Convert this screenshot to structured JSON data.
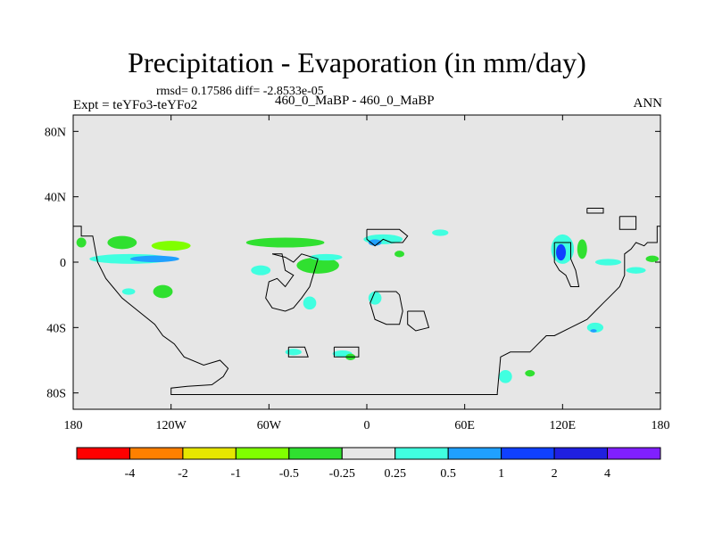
{
  "chart_data": {
    "type": "contour-map",
    "title": "Precipitation - Evaporation (in mm/day)",
    "stats_text": "rmsd= 0.17586 diff= -2.8533e-05",
    "left_label": "Expt = teYFo3-teYFo2",
    "center_label": "460_0_MaBP - 460_0_MaBP",
    "right_label": "ANN",
    "x_range": [
      -180,
      180
    ],
    "y_range": [
      -90,
      90
    ],
    "x_ticks": [
      {
        "value": -180,
        "label": "180"
      },
      {
        "value": -120,
        "label": "120W"
      },
      {
        "value": -60,
        "label": "60W"
      },
      {
        "value": 0,
        "label": "0"
      },
      {
        "value": 60,
        "label": "60E"
      },
      {
        "value": 120,
        "label": "120E"
      },
      {
        "value": 180,
        "label": "180"
      }
    ],
    "y_ticks": [
      {
        "value": 80,
        "label": "80N"
      },
      {
        "value": 40,
        "label": "40N"
      },
      {
        "value": 0,
        "label": "0"
      },
      {
        "value": -40,
        "label": "40S"
      },
      {
        "value": -80,
        "label": "80S"
      }
    ],
    "background_color": "#e6e6e6",
    "colorbar": {
      "colors": [
        "#ff0000",
        "#ff8000",
        "#e6e600",
        "#80ff00",
        "#30e030",
        "#e6e6e6",
        "#40ffe0",
        "#20a0ff",
        "#1040ff",
        "#2020e0",
        "#8020ff"
      ],
      "labels": [
        "-4",
        "-2",
        "-1",
        "-0.5",
        "-0.25",
        "0.25",
        "0.5",
        "1",
        "2",
        "4"
      ]
    },
    "regions": [
      {
        "name": "tropical-pacific-north-band",
        "lon": -150,
        "lat": 12,
        "rlon": 9,
        "rlat": 4,
        "color": "#30e030"
      },
      {
        "name": "tropical-pacific-band",
        "lon": -145,
        "lat": 2,
        "rlon": 25,
        "rlat": 3,
        "color": "#40ffe0"
      },
      {
        "name": "tropical-pacific-core",
        "lon": -130,
        "lat": 2,
        "rlon": 15,
        "rlat": 2,
        "color": "#20a0ff"
      },
      {
        "name": "west-pacific-green",
        "lon": -175,
        "lat": 12,
        "rlon": 3,
        "rlat": 3,
        "color": "#30e030"
      },
      {
        "name": "east-pacific-green",
        "lon": -120,
        "lat": 10,
        "rlon": 12,
        "rlat": 3,
        "color": "#80ff00"
      },
      {
        "name": "south-pacific-green",
        "lon": -125,
        "lat": -18,
        "rlon": 6,
        "rlat": 4,
        "color": "#30e030"
      },
      {
        "name": "south-pacific-cyan",
        "lon": -146,
        "lat": -18,
        "rlon": 4,
        "rlat": 2,
        "color": "#40ffe0"
      },
      {
        "name": "atlantic-north-band",
        "lon": -50,
        "lat": 12,
        "rlon": 24,
        "rlat": 3,
        "color": "#30e030"
      },
      {
        "name": "atlantic-south-band",
        "lon": -30,
        "lat": -2,
        "rlon": 13,
        "rlat": 5,
        "color": "#30e030"
      },
      {
        "name": "atlantic-cyan",
        "lon": -25,
        "lat": 3,
        "rlon": 10,
        "rlat": 2,
        "color": "#40ffe0"
      },
      {
        "name": "atlantic-west-cyan",
        "lon": -65,
        "lat": -5,
        "rlon": 6,
        "rlat": 3,
        "color": "#40ffe0"
      },
      {
        "name": "africa-north-cyan",
        "lon": 10,
        "lat": 14,
        "rlon": 12,
        "rlat": 3,
        "color": "#40ffe0"
      },
      {
        "name": "africa-north-blue",
        "lon": 5,
        "lat": 12,
        "rlon": 4,
        "rlat": 2,
        "color": "#20a0ff"
      },
      {
        "name": "east-africa-cyan",
        "lon": 45,
        "lat": 18,
        "rlon": 5,
        "rlat": 2,
        "color": "#40ffe0"
      },
      {
        "name": "indian-ocean-green",
        "lon": 20,
        "lat": 5,
        "rlon": 3,
        "rlat": 2,
        "color": "#30e030"
      },
      {
        "name": "south-america-cyan",
        "lon": -35,
        "lat": -25,
        "rlon": 4,
        "rlat": 4,
        "color": "#40ffe0"
      },
      {
        "name": "southern-africa-cyan",
        "lon": 5,
        "lat": -22,
        "rlon": 4,
        "rlat": 4,
        "color": "#40ffe0"
      },
      {
        "name": "south-ocean-cyan-west",
        "lon": -45,
        "lat": -55,
        "rlon": 5,
        "rlat": 2,
        "color": "#40ffe0"
      },
      {
        "name": "south-ocean-cyan-east",
        "lon": -15,
        "lat": -56,
        "rlon": 6,
        "rlat": 2,
        "color": "#40ffe0"
      },
      {
        "name": "south-ocean-green",
        "lon": -10,
        "lat": -58,
        "rlon": 3,
        "rlat": 2,
        "color": "#30e030"
      },
      {
        "name": "west-pacific-cyan",
        "lon": 120,
        "lat": 8,
        "rlon": 7,
        "rlat": 9,
        "color": "#40ffe0"
      },
      {
        "name": "west-pacific-blue",
        "lon": 119,
        "lat": 6,
        "rlon": 3,
        "rlat": 5,
        "color": "#1040ff"
      },
      {
        "name": "west-pacific-green-2",
        "lon": 132,
        "lat": 8,
        "rlon": 3,
        "rlat": 6,
        "color": "#30e030"
      },
      {
        "name": "north-pacific-cyan",
        "lon": 148,
        "lat": 0,
        "rlon": 8,
        "rlat": 2,
        "color": "#40ffe0"
      },
      {
        "name": "australia-east-cyan",
        "lon": 140,
        "lat": -40,
        "rlon": 5,
        "rlat": 3,
        "color": "#40ffe0"
      },
      {
        "name": "australia-east-blue",
        "lon": 139,
        "lat": -42,
        "rlon": 2,
        "rlat": 1,
        "color": "#20a0ff"
      },
      {
        "name": "southern-ocean-cyan",
        "lon": 85,
        "lat": -70,
        "rlon": 4,
        "rlat": 4,
        "color": "#40ffe0"
      },
      {
        "name": "southern-ocean-green",
        "lon": 100,
        "lat": -68,
        "rlon": 3,
        "rlat": 2,
        "color": "#30e030"
      },
      {
        "name": "far-east-green",
        "lon": 175,
        "lat": 2,
        "rlon": 4,
        "rlat": 2,
        "color": "#30e030"
      },
      {
        "name": "far-east-cyan",
        "lon": 165,
        "lat": -5,
        "rlon": 6,
        "rlat": 2,
        "color": "#40ffe0"
      }
    ],
    "coastlines": [
      {
        "name": "gondwana-west-coast",
        "points": [
          [
            -180,
            22
          ],
          [
            -175,
            22
          ],
          [
            -175,
            16
          ],
          [
            -168,
            16
          ],
          [
            -165,
            0
          ],
          [
            -160,
            -10
          ],
          [
            -150,
            -22
          ],
          [
            -140,
            -30
          ],
          [
            -130,
            -38
          ],
          [
            -125,
            -45
          ],
          [
            -118,
            -50
          ],
          [
            -112,
            -58
          ],
          [
            -100,
            -63
          ],
          [
            -90,
            -60
          ],
          [
            -85,
            -65
          ],
          [
            -88,
            -70
          ],
          [
            -95,
            -75
          ],
          [
            -110,
            -76
          ],
          [
            -120,
            -77
          ],
          [
            -120,
            -80
          ],
          [
            -120,
            -81
          ],
          [
            -95,
            -81
          ],
          [
            -80,
            -81
          ],
          [
            -20,
            -81
          ],
          [
            80,
            -81
          ],
          [
            80,
            -80
          ],
          [
            82,
            -58
          ],
          [
            88,
            -55
          ],
          [
            100,
            -55
          ],
          [
            105,
            -50
          ],
          [
            110,
            -45
          ],
          [
            115,
            -45
          ],
          [
            125,
            -40
          ],
          [
            135,
            -35
          ],
          [
            140,
            -30
          ],
          [
            145,
            -25
          ],
          [
            150,
            -20
          ],
          [
            155,
            -15
          ],
          [
            158,
            -8
          ],
          [
            158,
            5
          ],
          [
            162,
            8
          ],
          [
            165,
            12
          ],
          [
            170,
            10
          ],
          [
            172,
            12
          ],
          [
            178,
            12
          ],
          [
            178,
            22
          ],
          [
            180,
            22
          ]
        ]
      },
      {
        "name": "north-island-1",
        "points": [
          [
            0,
            20
          ],
          [
            20,
            20
          ],
          [
            25,
            16
          ],
          [
            22,
            12
          ],
          [
            15,
            12
          ],
          [
            10,
            14
          ],
          [
            5,
            10
          ],
          [
            0,
            14
          ],
          [
            0,
            20
          ]
        ]
      },
      {
        "name": "north-island-2",
        "points": [
          [
            -58,
            5
          ],
          [
            -52,
            5
          ],
          [
            -50,
            -5
          ],
          [
            -45,
            -8
          ],
          [
            -50,
            -15
          ],
          [
            -55,
            -10
          ],
          [
            -60,
            -12
          ],
          [
            -62,
            -22
          ],
          [
            -58,
            -28
          ],
          [
            -50,
            -30
          ],
          [
            -45,
            -28
          ],
          [
            -40,
            -22
          ],
          [
            -35,
            -15
          ],
          [
            -32,
            -5
          ],
          [
            -30,
            2
          ],
          [
            -40,
            5
          ],
          [
            -45,
            0
          ],
          [
            -50,
            3
          ],
          [
            -58,
            5
          ]
        ]
      },
      {
        "name": "africa-block",
        "points": [
          [
            5,
            -18
          ],
          [
            18,
            -18
          ],
          [
            20,
            -20
          ],
          [
            22,
            -30
          ],
          [
            20,
            -38
          ],
          [
            12,
            -38
          ],
          [
            5,
            -35
          ],
          [
            2,
            -25
          ],
          [
            5,
            -18
          ]
        ]
      },
      {
        "name": "east-africa",
        "points": [
          [
            25,
            -30
          ],
          [
            35,
            -30
          ],
          [
            38,
            -40
          ],
          [
            30,
            -42
          ],
          [
            25,
            -38
          ],
          [
            25,
            -30
          ]
        ]
      },
      {
        "name": "south-small-1",
        "points": [
          [
            -48,
            -52
          ],
          [
            -38,
            -52
          ],
          [
            -36,
            -58
          ],
          [
            -48,
            -58
          ],
          [
            -48,
            -52
          ]
        ]
      },
      {
        "name": "south-small-2",
        "points": [
          [
            -20,
            -52
          ],
          [
            -5,
            -52
          ],
          [
            -5,
            -58
          ],
          [
            -20,
            -58
          ],
          [
            -20,
            -52
          ]
        ]
      },
      {
        "name": "asia-block",
        "points": [
          [
            115,
            12
          ],
          [
            125,
            12
          ],
          [
            125,
            2
          ],
          [
            128,
            -5
          ],
          [
            130,
            -15
          ],
          [
            125,
            -15
          ],
          [
            122,
            -8
          ],
          [
            118,
            -5
          ],
          [
            115,
            0
          ],
          [
            115,
            12
          ]
        ]
      },
      {
        "name": "north-strip",
        "points": [
          [
            135,
            33
          ],
          [
            145,
            33
          ],
          [
            145,
            30
          ],
          [
            135,
            30
          ],
          [
            135,
            33
          ]
        ]
      },
      {
        "name": "north-east-block",
        "points": [
          [
            155,
            28
          ],
          [
            165,
            28
          ],
          [
            165,
            20
          ],
          [
            155,
            20
          ],
          [
            155,
            28
          ]
        ]
      }
    ]
  }
}
